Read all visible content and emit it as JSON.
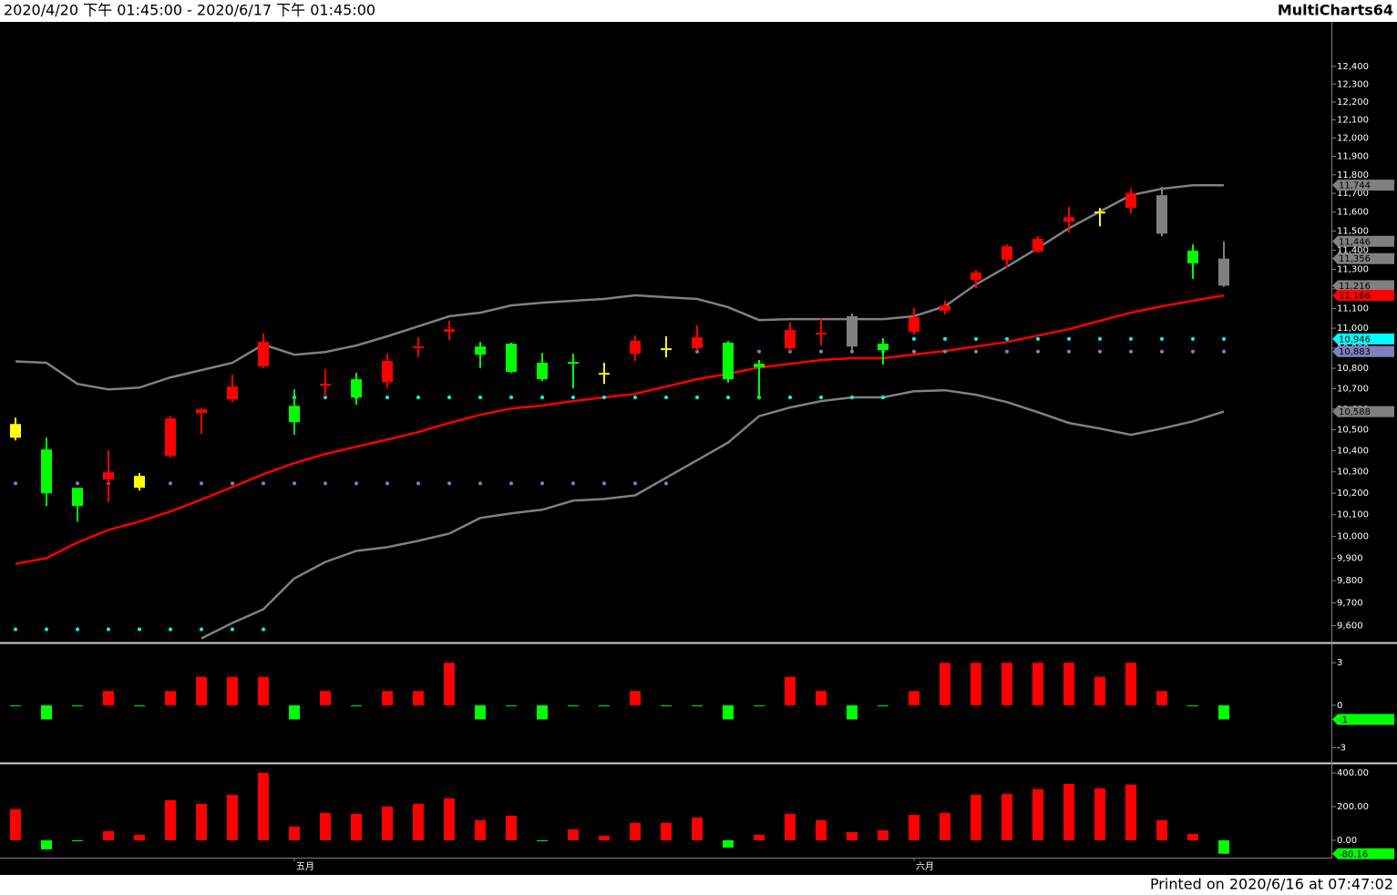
{
  "header": {
    "range": "2020/4/20 下午 01:45:00 - 2020/6/17 下午 01:45:00",
    "app": "MultiCharts64"
  },
  "footer": {
    "printed": "Printed on 2020/6/16 at 07:47:02"
  },
  "chart_data": [
    {
      "type": "candlestick",
      "log": true,
      "ylim": [
        9530,
        12650
      ],
      "yticks": [
        {
          "value": 9600,
          "label": "9,600"
        },
        {
          "value": 9700,
          "label": "9,700"
        },
        {
          "value": 9800,
          "label": "9,800"
        },
        {
          "value": 9900,
          "label": "9,900"
        },
        {
          "value": 10000,
          "label": "10,000"
        },
        {
          "value": 10100,
          "label": "10,100"
        },
        {
          "value": 10200,
          "label": "10,200"
        },
        {
          "value": 10300,
          "label": "10,300"
        },
        {
          "value": 10400,
          "label": "10,400"
        },
        {
          "value": 10500,
          "label": "10,500"
        },
        {
          "value": 10600,
          "label": "10,600"
        },
        {
          "value": 10700,
          "label": "10,700"
        },
        {
          "value": 10800,
          "label": "10,800"
        },
        {
          "value": 10900,
          "label": "10,900"
        },
        {
          "value": 11000,
          "label": "11,000"
        },
        {
          "value": 11100,
          "label": "11,100"
        },
        {
          "value": 11200,
          "label": "11,200"
        },
        {
          "value": 11300,
          "label": "11,300"
        },
        {
          "value": 11400,
          "label": "11,400"
        },
        {
          "value": 11500,
          "label": "11,500"
        },
        {
          "value": 11600,
          "label": "11,600"
        },
        {
          "value": 11700,
          "label": "11,700"
        },
        {
          "value": 11800,
          "label": "11,800"
        },
        {
          "value": 11900,
          "label": "11,900"
        },
        {
          "value": 12000,
          "label": "12,000"
        },
        {
          "value": 12100,
          "label": "12,100"
        },
        {
          "value": 12200,
          "label": "12,200"
        },
        {
          "value": 12300,
          "label": "12,300"
        },
        {
          "value": 12400,
          "label": "12,400"
        }
      ],
      "categories": [
        null,
        null,
        null,
        null,
        null,
        null,
        null,
        null,
        null,
        "五月",
        null,
        null,
        null,
        null,
        null,
        null,
        null,
        null,
        null,
        null,
        null,
        null,
        null,
        null,
        null,
        null,
        null,
        null,
        null,
        "六月",
        null,
        null,
        null,
        null,
        null,
        null,
        null,
        null,
        null,
        null
      ],
      "open": [
        10528,
        10406,
        10225,
        10264,
        10281,
        10375,
        10581,
        10647,
        10809,
        10616,
        10714,
        10746,
        10732,
        10895,
        10982,
        10908,
        10922,
        10827,
        10827,
        10773,
        10872,
        10895,
        10900,
        10927,
        10823,
        10900,
        10963,
        11060,
        10922,
        10982,
        11088,
        11245,
        11349,
        11392,
        11549,
        11598,
        11622,
        11690,
        11397,
        11356
      ],
      "high": [
        10559,
        10462,
        10225,
        10401,
        10294,
        10568,
        10603,
        10768,
        10973,
        10696,
        10795,
        10777,
        10872,
        10954,
        11037,
        10931,
        10927,
        10876,
        10872,
        10827,
        10963,
        10959,
        11014,
        10936,
        10841,
        11028,
        11046,
        11074,
        10950,
        11101,
        11139,
        11297,
        11430,
        11473,
        11627,
        11622,
        11725,
        11735,
        11430,
        11446
      ],
      "low": [
        10449,
        10140,
        10068,
        10158,
        10212,
        10367,
        10480,
        10634,
        10800,
        10476,
        10660,
        10621,
        10705,
        10854,
        10940,
        10800,
        10777,
        10737,
        10701,
        10723,
        10836,
        10854,
        10886,
        10728,
        10647,
        10881,
        10913,
        10886,
        10818,
        10968,
        11069,
        11203,
        11307,
        11387,
        11491,
        11525,
        11593,
        11472,
        11251,
        11210
      ],
      "close": [
        10462,
        10199,
        10140,
        10298,
        10225,
        10555,
        10599,
        10710,
        10932,
        10537,
        10723,
        10656,
        10836,
        10904,
        10995,
        10867,
        10782,
        10746,
        10818,
        10773,
        10936,
        10895,
        10954,
        10746,
        10805,
        10991,
        10972,
        10908,
        10890,
        11055,
        11115,
        11283,
        11420,
        11459,
        11573,
        11598,
        11700,
        11486,
        11331,
        11216
      ],
      "colors": [
        "#ffff00",
        "#00ff00",
        "#00ff00",
        "#ff0000",
        "#ffff00",
        "#ff0000",
        "#ff0000",
        "#ff0000",
        "#ff0000",
        "#00ff00",
        "#ff0000",
        "#00ff00",
        "#ff0000",
        "#ff0000",
        "#ff0000",
        "#00ff00",
        "#00ff00",
        "#00ff00",
        "#00ff00",
        "#ffff00",
        "#ff0000",
        "#ffff00",
        "#ff0000",
        "#00ff00",
        "#00ff00",
        "#ff0000",
        "#ff0000",
        "#808080",
        "#00ff00",
        "#ff0000",
        "#ff0000",
        "#ff0000",
        "#ff0000",
        "#ff0000",
        "#ff0000",
        "#ffff00",
        "#ff0000",
        "#808080",
        "#00ff00",
        "#808080"
      ],
      "bands": [
        {
          "color": "#808080",
          "values": [
            10834,
            10827,
            10723,
            10696,
            10705,
            10755,
            10791,
            10827,
            10918,
            10867,
            10881,
            10913,
            10959,
            11009,
            11060,
            11078,
            11115,
            11129,
            11139,
            11148,
            11167,
            11157,
            11148,
            11106,
            11041,
            11046,
            11046,
            11046,
            11046,
            11060,
            11111,
            11223,
            11314,
            11411,
            11515,
            11603,
            11690,
            11725,
            11744,
            11744
          ]
        },
        {
          "color": "#ff0000",
          "values": [
            9875,
            9901,
            9972,
            10030,
            10068,
            10115,
            10170,
            10229,
            10289,
            10341,
            10384,
            10419,
            10453,
            10489,
            10533,
            10572,
            10603,
            10617,
            10639,
            10657,
            10674,
            10710,
            10746,
            10773,
            10804,
            10822,
            10841,
            10850,
            10850,
            10868,
            10886,
            10908,
            10931,
            10963,
            10995,
            11037,
            11078,
            11111,
            11139,
            11166
          ]
        },
        {
          "color": "#808080",
          "values": [
            null,
            null,
            null,
            null,
            null,
            null,
            9544,
            9612,
            9672,
            9810,
            9884,
            9934,
            9951,
            9980,
            10013,
            10085,
            10106,
            10123,
            10165,
            10173,
            10190,
            10272,
            10355,
            10439,
            10566,
            10608,
            10639,
            10657,
            10657,
            10687,
            10692,
            10670,
            10634,
            10585,
            10533,
            10506,
            10476,
            10506,
            10541,
            10588
          ]
        }
      ],
      "dots": [
        {
          "color": "#00ffff",
          "values": [
            9584,
            9584,
            9584,
            9584,
            9584,
            9584,
            9584,
            9584,
            9584,
            10657,
            10657,
            10657,
            10657,
            10657,
            10657,
            10657,
            10657,
            10657,
            10657,
            10657,
            10657,
            10657,
            10657,
            10657,
            10657,
            10657,
            10657,
            10657,
            10657,
            10946,
            10946,
            10946,
            10946,
            10946,
            10946,
            10946,
            10946,
            10946,
            10946,
            10946
          ]
        },
        {
          "color": "#8080c0",
          "values": [
            10246,
            10246,
            10246,
            10246,
            10246,
            10246,
            10246,
            10246,
            10246,
            10246,
            10246,
            10246,
            10246,
            10246,
            10246,
            10246,
            10246,
            10246,
            10246,
            10246,
            10246,
            10246,
            10883,
            10883,
            10883,
            10883,
            10883,
            10883,
            10883,
            10883,
            10883,
            10883,
            10883,
            10883,
            10883,
            10883,
            10883,
            10883,
            10883,
            10883
          ]
        }
      ],
      "markers": [
        {
          "value": 11744,
          "label": "11,744",
          "color": "#808080"
        },
        {
          "value": 11446,
          "label": "11,446",
          "color": "#808080"
        },
        {
          "value": 11356,
          "label": "11,356",
          "color": "#808080"
        },
        {
          "value": 11216,
          "label": "11,216",
          "color": "#808080"
        },
        {
          "value": 11166,
          "label": "11,166",
          "color": "#ff0000"
        },
        {
          "value": 10946,
          "label": "10,946",
          "color": "#00ffff"
        },
        {
          "value": 10883,
          "label": "10,883",
          "color": "#8080c0"
        },
        {
          "value": 10588,
          "label": "10,588",
          "color": "#808080"
        }
      ]
    },
    {
      "type": "bar",
      "ylim": [
        -4,
        4.3
      ],
      "yticks": [
        3,
        0,
        -3
      ],
      "up_color": "#ff0000",
      "down_color": "#00ff00",
      "values": [
        0,
        -1,
        0,
        1,
        0,
        1,
        2,
        2,
        2,
        -1,
        1,
        0,
        1,
        1,
        3,
        -1,
        0,
        -1,
        0,
        0,
        1,
        0,
        0,
        -1,
        0,
        2,
        1,
        -1,
        0,
        1,
        3,
        3,
        3,
        3,
        3,
        2,
        3,
        1,
        0,
        -1
      ],
      "markers": [
        {
          "value": -1,
          "label": "-1",
          "color": "#00ff00"
        }
      ]
    },
    {
      "type": "bar",
      "ylim": [
        -103,
        449
      ],
      "yticks": [
        {
          "value": 400,
          "label": "400.00"
        },
        {
          "value": 200,
          "label": "200.00"
        },
        {
          "value": 0,
          "label": "0.00"
        }
      ],
      "up_color": "#ff0000",
      "down_color": "#00ff00",
      "values": [
        184,
        -54,
        -3,
        54,
        32,
        238,
        216,
        270,
        400,
        81,
        162,
        157,
        200,
        216,
        249,
        119,
        146,
        -2,
        65,
        27,
        103,
        103,
        135,
        -43,
        32,
        157,
        119,
        49,
        59,
        151,
        162,
        270,
        276,
        303,
        335,
        308,
        330,
        119,
        38,
        -80.16
      ],
      "markers": [
        {
          "value": -80.16,
          "label": "-80.16",
          "color": "#00ff00"
        }
      ]
    }
  ]
}
